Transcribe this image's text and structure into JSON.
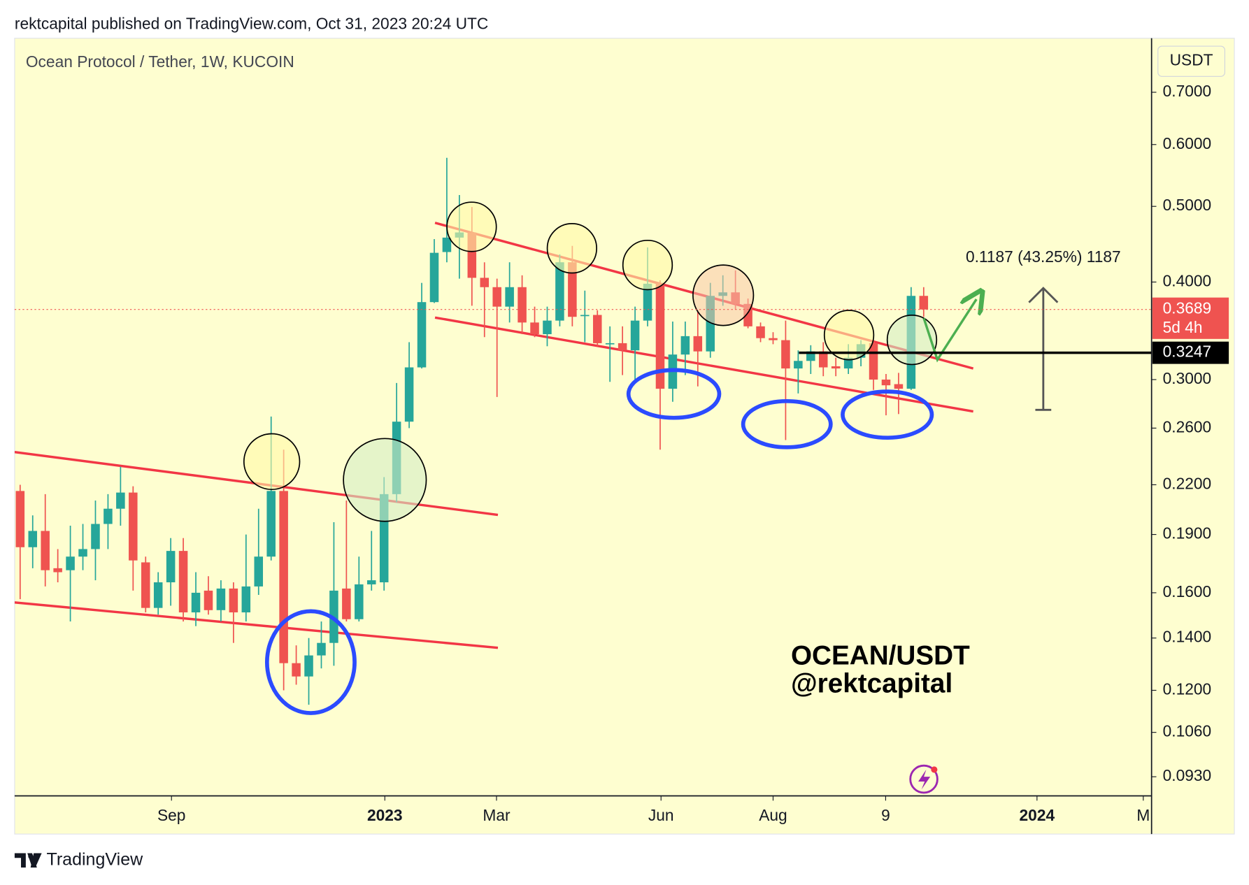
{
  "header": "rektcapital published on TradingView.com, Oct 31, 2023 20:24 UTC",
  "footer": "TradingView",
  "chart_data": {
    "type": "candlestick",
    "title": "Ocean Protocol / Tether, 1W, KUCOIN",
    "currency": "USDT",
    "log_scale": true,
    "up_color": "#26a69a",
    "down_color": "#ef5350",
    "ylim": [
      0.0879,
      0.821
    ],
    "yticks": [
      {
        "value": 0.7,
        "label": "0.7000"
      },
      {
        "value": 0.6,
        "label": "0.6000"
      },
      {
        "value": 0.5,
        "label": "0.5000"
      },
      {
        "value": 0.4,
        "label": "0.4000"
      },
      {
        "value": 0.3,
        "label": "0.3000"
      },
      {
        "value": 0.26,
        "label": "0.2600"
      },
      {
        "value": 0.22,
        "label": "0.2200"
      },
      {
        "value": 0.19,
        "label": "0.1900"
      },
      {
        "value": 0.16,
        "label": "0.1600"
      },
      {
        "value": 0.14,
        "label": "0.1400"
      },
      {
        "value": 0.12,
        "label": "0.1200"
      },
      {
        "value": 0.106,
        "label": "0.1060"
      },
      {
        "value": 0.093,
        "label": "0.0930"
      }
    ],
    "xlim": [
      -0.44,
      90.16
    ],
    "xticks": [
      {
        "value": 12.06,
        "label": "Sep"
      },
      {
        "value": 29.06,
        "label": "2023"
      },
      {
        "value": 37.96,
        "label": "Mar"
      },
      {
        "value": 51.07,
        "label": "Jun"
      },
      {
        "value": 60.0,
        "label": "Aug"
      },
      {
        "value": 68.97,
        "label": "9"
      },
      {
        "value": 81.03,
        "label": "2024"
      },
      {
        "value": 89.5,
        "label": "M"
      }
    ],
    "open": [
      0.216,
      0.183,
      0.192,
      0.172,
      0.171,
      0.178,
      0.182,
      0.196,
      0.205,
      0.215,
      0.175,
      0.153,
      0.165,
      0.181,
      0.151,
      0.161,
      0.152,
      0.162,
      0.151,
      0.163,
      0.178,
      0.216,
      0.13,
      0.125,
      0.133,
      0.138,
      0.162,
      0.148,
      0.164,
      0.165,
      0.214,
      0.265,
      0.311,
      0.377,
      0.437,
      0.456,
      0.463,
      0.405,
      0.394,
      0.372,
      0.394,
      0.355,
      0.343,
      0.357,
      0.424,
      0.362,
      0.363,
      0.333,
      0.334,
      0.327,
      0.357,
      0.399,
      0.292,
      0.323,
      0.341,
      0.326,
      0.384,
      0.388,
      0.375,
      0.351,
      0.339,
      0.337,
      0.31,
      0.317,
      0.326,
      0.312,
      0.31,
      0.32,
      0.334,
      0.3,
      0.296,
      0.292,
      0.384
    ],
    "high": [
      0.22,
      0.201,
      0.214,
      0.182,
      0.195,
      0.196,
      0.21,
      0.214,
      0.232,
      0.219,
      0.178,
      0.17,
      0.188,
      0.188,
      0.17,
      0.168,
      0.166,
      0.165,
      0.19,
      0.205,
      0.269,
      0.244,
      0.137,
      0.14,
      0.147,
      0.197,
      0.21,
      0.178,
      0.192,
      0.225,
      0.297,
      0.335,
      0.399,
      0.454,
      0.577,
      0.517,
      0.499,
      0.424,
      0.404,
      0.424,
      0.408,
      0.372,
      0.372,
      0.434,
      0.445,
      0.39,
      0.368,
      0.351,
      0.351,
      0.372,
      0.443,
      0.402,
      0.356,
      0.356,
      0.368,
      0.399,
      0.408,
      0.414,
      0.381,
      0.355,
      0.345,
      0.357,
      0.327,
      0.332,
      0.335,
      0.32,
      0.333,
      0.337,
      0.337,
      0.305,
      0.306,
      0.394,
      0.394
    ],
    "low": [
      0.157,
      0.172,
      0.163,
      0.165,
      0.147,
      0.171,
      0.166,
      0.182,
      0.195,
      0.161,
      0.151,
      0.15,
      0.154,
      0.147,
      0.145,
      0.15,
      0.147,
      0.138,
      0.147,
      0.159,
      0.176,
      0.12,
      0.122,
      0.115,
      0.128,
      0.129,
      0.147,
      0.147,
      0.161,
      0.161,
      0.209,
      0.26,
      0.31,
      0.376,
      0.424,
      0.404,
      0.373,
      0.34,
      0.285,
      0.355,
      0.343,
      0.34,
      0.331,
      0.351,
      0.351,
      0.335,
      0.331,
      0.298,
      0.304,
      0.298,
      0.351,
      0.244,
      0.281,
      0.304,
      0.294,
      0.32,
      0.373,
      0.369,
      0.349,
      0.335,
      0.333,
      0.251,
      0.288,
      0.305,
      0.303,
      0.303,
      0.305,
      0.312,
      0.291,
      0.27,
      0.271,
      0.291,
      0.361
    ],
    "close": [
      0.183,
      0.192,
      0.171,
      0.17,
      0.178,
      0.182,
      0.196,
      0.205,
      0.215,
      0.176,
      0.153,
      0.165,
      0.181,
      0.151,
      0.16,
      0.152,
      0.162,
      0.151,
      0.163,
      0.178,
      0.216,
      0.13,
      0.125,
      0.133,
      0.138,
      0.161,
      0.148,
      0.164,
      0.166,
      0.214,
      0.265,
      0.311,
      0.377,
      0.436,
      0.456,
      0.463,
      0.405,
      0.394,
      0.372,
      0.394,
      0.355,
      0.343,
      0.357,
      0.424,
      0.361,
      0.363,
      0.334,
      0.334,
      0.327,
      0.357,
      0.398,
      0.292,
      0.323,
      0.341,
      0.326,
      0.384,
      0.388,
      0.375,
      0.351,
      0.339,
      0.337,
      0.31,
      0.317,
      0.326,
      0.311,
      0.31,
      0.32,
      0.333,
      0.3,
      0.295,
      0.292,
      0.384,
      0.3689
    ],
    "current_price": 0.3689,
    "countdown": "5d 4h",
    "level": 0.3247,
    "measure_label": "0.1187 (43.25%) 1187",
    "annotation": "OCEAN/USDT",
    "annotation_author": "@rektcapital"
  }
}
